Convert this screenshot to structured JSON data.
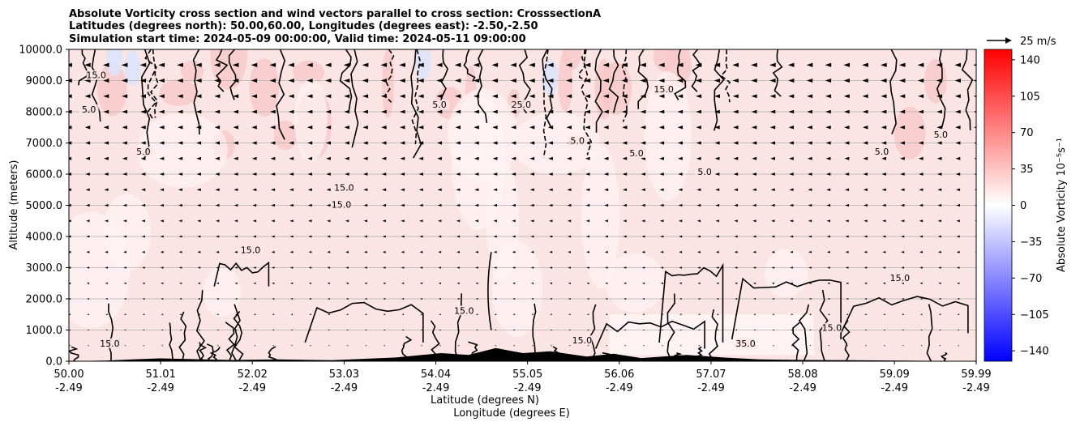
{
  "chart_data": {
    "type": "heatmap",
    "title_lines": [
      "Absolute Vorticity cross section and wind vectors parallel to cross section: CrosssectionA",
      "Latitudes (degrees north): 50.00,60.00, Longitudes (degrees east): -2.50,-2.50",
      "Simulation start time: 2024-05-09 00:00:00, Valid time: 2024-05-11 09:00:00"
    ],
    "ylabel": "Altitude (meters)",
    "xlabel_lines": [
      "Latitude (degrees N)",
      "Longitude (degrees E)"
    ],
    "ylim": [
      0,
      10000
    ],
    "xlim": [
      50.0,
      59.99
    ],
    "y_ticks": [
      "0.0",
      "1000.0",
      "2000.0",
      "3000.0",
      "4000.0",
      "5000.0",
      "6000.0",
      "7000.0",
      "8000.0",
      "9000.0",
      "10000.0"
    ],
    "x_ticks": [
      {
        "lat": "50.00",
        "lon": "-2.49"
      },
      {
        "lat": "51.01",
        "lon": "-2.49"
      },
      {
        "lat": "52.02",
        "lon": "-2.49"
      },
      {
        "lat": "53.03",
        "lon": "-2.49"
      },
      {
        "lat": "54.04",
        "lon": "-2.49"
      },
      {
        "lat": "55.05",
        "lon": "-2.49"
      },
      {
        "lat": "56.06",
        "lon": "-2.49"
      },
      {
        "lat": "57.07",
        "lon": "-2.49"
      },
      {
        "lat": "58.08",
        "lon": "-2.49"
      },
      {
        "lat": "59.09",
        "lon": "-2.49"
      },
      {
        "lat": "59.99",
        "lon": "-2.49"
      }
    ],
    "grid": "horizontal",
    "colorbar": {
      "label": "Absolute Vorticity 10⁻⁵s⁻¹",
      "range": [
        -150,
        150
      ],
      "ticks": [
        "140",
        "105",
        "70",
        "35",
        "0",
        "−35",
        "−70",
        "−105",
        "−140"
      ],
      "colormap": "bwr"
    },
    "quiver_key": {
      "label": "25 m/s",
      "speed": 25
    },
    "contour_labels": [
      {
        "text": "5.0",
        "lat": 50.22,
        "alt": 8000
      },
      {
        "text": "15.0",
        "lat": 50.3,
        "alt": 9100
      },
      {
        "text": "5.0",
        "lat": 50.82,
        "alt": 6650
      },
      {
        "text": "15.0",
        "lat": 53.03,
        "alt": 5500
      },
      {
        "text": "15.0",
        "lat": 53.0,
        "alt": 4950
      },
      {
        "text": "15.0",
        "lat": 54.35,
        "alt": 1550
      },
      {
        "text": "5.0",
        "lat": 54.08,
        "alt": 8150
      },
      {
        "text": "25.0",
        "lat": 54.98,
        "alt": 8150
      },
      {
        "text": "5.0",
        "lat": 56.25,
        "alt": 6600
      },
      {
        "text": "15.0",
        "lat": 50.45,
        "alt": 500
      },
      {
        "text": "15.0",
        "lat": 52.0,
        "alt": 3500
      },
      {
        "text": "5.0",
        "lat": 57.0,
        "alt": 6000
      },
      {
        "text": "15.0",
        "lat": 58.4,
        "alt": 1000
      },
      {
        "text": "35.0",
        "lat": 57.45,
        "alt": 500
      },
      {
        "text": "15.0",
        "lat": 55.65,
        "alt": 600
      },
      {
        "text": "5.0",
        "lat": 58.95,
        "alt": 6650
      },
      {
        "text": "15.0",
        "lat": 59.15,
        "alt": 2600
      },
      {
        "text": "5.0",
        "lat": 59.6,
        "alt": 7200
      },
      {
        "text": "15.0",
        "lat": 56.55,
        "alt": 8650
      },
      {
        "text": "5.0",
        "lat": 55.6,
        "alt": 7000
      }
    ],
    "colors": {
      "field_background": "#fbe4e4",
      "field_light": "#fdf3f3",
      "field_strong": "#f7c7c7",
      "field_blue": "#dde3fb",
      "contour": "#000000",
      "terrain": "#000000",
      "grid": "#b0b0b0"
    }
  }
}
